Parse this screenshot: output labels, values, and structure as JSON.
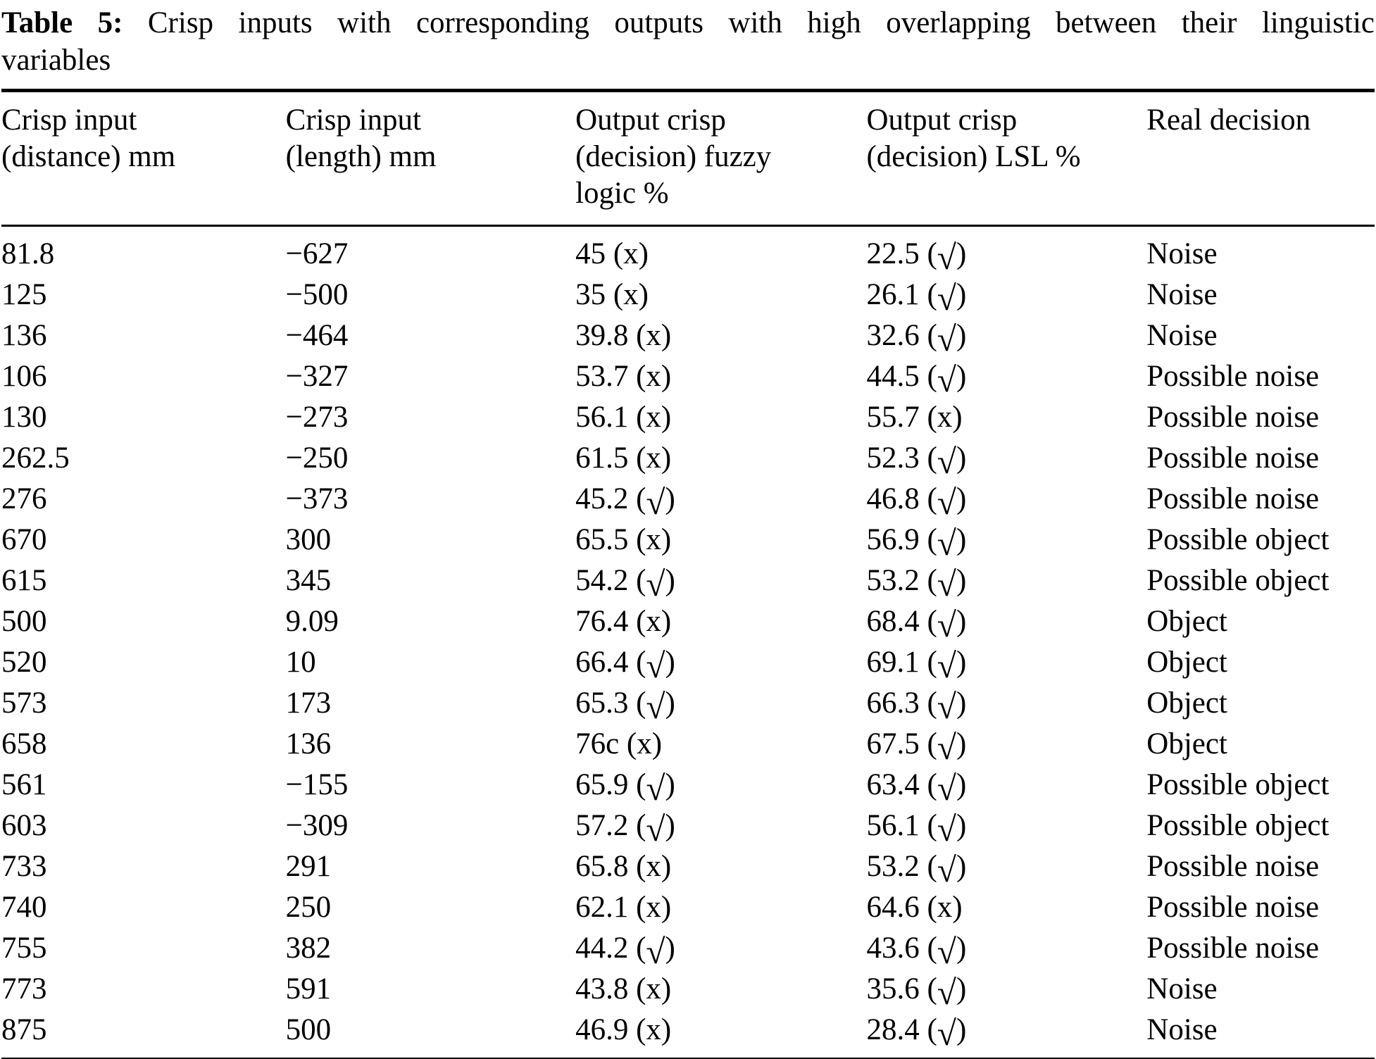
{
  "caption": {
    "label": "Table 5:",
    "line1": "Crisp inputs with corresponding outputs with high overlapping between their linguistic",
    "line2": "variables"
  },
  "symbols": {
    "check": "√",
    "cross": "x"
  },
  "colors": {
    "text": "#000000",
    "background": "#ffffff",
    "rule": "#000000"
  },
  "table": {
    "headers": [
      "Crisp input\n(distance) mm",
      "Crisp input\n(length) mm",
      "Output crisp\n(decision) fuzzy\nlogic %",
      "Output crisp\n(decision) LSL %",
      "Real decision"
    ],
    "rows": [
      [
        "81.8",
        "−627",
        "45 (x)",
        "22.5 (√)",
        "Noise"
      ],
      [
        "125",
        "−500",
        "35 (x)",
        "26.1 (√)",
        "Noise"
      ],
      [
        "136",
        "−464",
        "39.8 (x)",
        "32.6 (√)",
        "Noise"
      ],
      [
        "106",
        "−327",
        "53.7 (x)",
        "44.5 (√)",
        "Possible noise"
      ],
      [
        "130",
        "−273",
        "56.1 (x)",
        "55.7 (x)",
        "Possible noise"
      ],
      [
        "262.5",
        "−250",
        "61.5 (x)",
        "52.3 (√)",
        "Possible noise"
      ],
      [
        "276",
        "−373",
        "45.2 (√)",
        "46.8 (√)",
        "Possible noise"
      ],
      [
        "670",
        "300",
        "65.5 (x)",
        "56.9 (√)",
        "Possible object"
      ],
      [
        "615",
        "345",
        "54.2 (√)",
        "53.2 (√)",
        "Possible object"
      ],
      [
        "500",
        "9.09",
        "76.4 (x)",
        "68.4 (√)",
        "Object"
      ],
      [
        "520",
        "10",
        "66.4 (√)",
        "69.1 (√)",
        "Object"
      ],
      [
        "573",
        "173",
        "65.3 (√)",
        "66.3 (√)",
        "Object"
      ],
      [
        "658",
        "136",
        "76c (x)",
        "67.5 (√)",
        "Object"
      ],
      [
        "561",
        "−155",
        "65.9 (√)",
        "63.4 (√)",
        "Possible object"
      ],
      [
        "603",
        "−309",
        "57.2 (√)",
        "56.1 (√)",
        "Possible object"
      ],
      [
        "733",
        "291",
        "65.8 (x)",
        "53.2 (√)",
        "Possible noise"
      ],
      [
        "740",
        "250",
        "62.1 (x)",
        "64.6 (x)",
        "Possible noise"
      ],
      [
        "755",
        "382",
        "44.2 (√)",
        "43.6 (√)",
        "Possible noise"
      ],
      [
        "773",
        "591",
        "43.8 (x)",
        "35.6 (√)",
        "Noise"
      ],
      [
        "875",
        "500",
        "46.9 (x)",
        "28.4 (√)",
        "Noise"
      ]
    ]
  }
}
